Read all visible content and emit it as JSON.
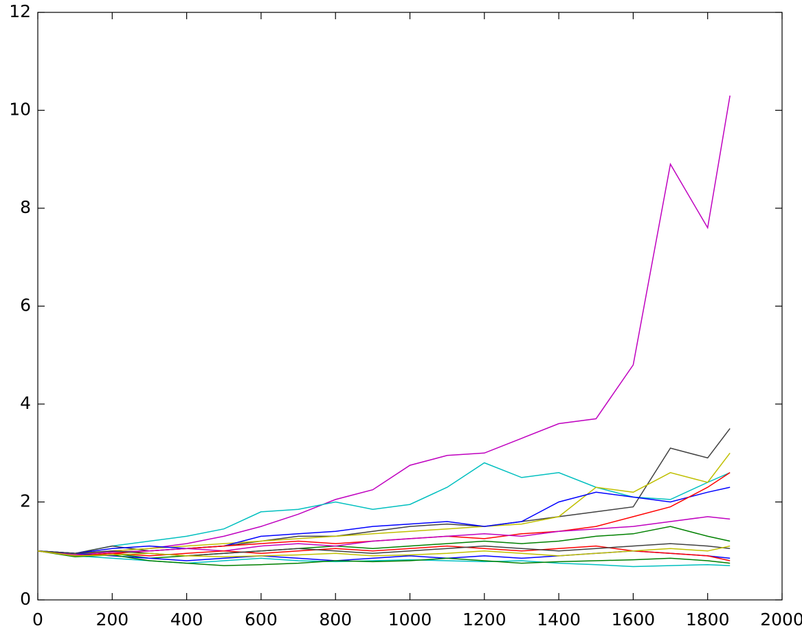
{
  "chart_data": {
    "type": "line",
    "x": [
      0,
      100,
      200,
      300,
      400,
      500,
      600,
      700,
      800,
      900,
      1000,
      1100,
      1200,
      1300,
      1400,
      1500,
      1600,
      1700,
      1800,
      1860
    ],
    "series": [
      {
        "color": "#bf00bf",
        "values": [
          1,
          0.92,
          1.0,
          1.05,
          1.15,
          1.3,
          1.5,
          1.75,
          2.05,
          2.25,
          2.75,
          2.95,
          3.0,
          3.3,
          3.6,
          3.7,
          4.8,
          8.9,
          7.6,
          10.3
        ]
      },
      {
        "color": "#00bfbf",
        "values": [
          1,
          0.95,
          1.1,
          1.2,
          1.3,
          1.45,
          1.8,
          1.85,
          2.0,
          1.85,
          1.95,
          2.3,
          2.8,
          2.5,
          2.6,
          2.3,
          2.1,
          2.05,
          2.4,
          2.6
        ]
      },
      {
        "color": "#404040",
        "values": [
          1,
          0.95,
          1.1,
          1.0,
          1.05,
          1.1,
          1.2,
          1.3,
          1.3,
          1.4,
          1.5,
          1.55,
          1.5,
          1.6,
          1.7,
          1.8,
          1.9,
          3.1,
          2.9,
          3.5
        ]
      },
      {
        "color": "#bfbf00",
        "values": [
          1,
          0.93,
          1.0,
          1.05,
          1.1,
          1.15,
          1.2,
          1.25,
          1.3,
          1.35,
          1.4,
          1.45,
          1.5,
          1.55,
          1.7,
          2.3,
          2.2,
          2.6,
          2.4,
          3.0
        ]
      },
      {
        "color": "#0000ff",
        "values": [
          1,
          0.95,
          1.05,
          1.1,
          1.05,
          1.1,
          1.3,
          1.35,
          1.4,
          1.5,
          1.55,
          1.6,
          1.5,
          1.6,
          2.0,
          2.2,
          2.1,
          2.0,
          2.2,
          2.3
        ]
      },
      {
        "color": "#ff0000",
        "values": [
          1,
          0.9,
          0.95,
          1.0,
          1.05,
          1.1,
          1.15,
          1.2,
          1.15,
          1.2,
          1.25,
          1.3,
          1.25,
          1.35,
          1.4,
          1.5,
          1.7,
          1.9,
          2.3,
          2.6
        ]
      },
      {
        "color": "#008000",
        "values": [
          1,
          0.9,
          0.95,
          0.85,
          0.9,
          0.95,
          1.0,
          1.05,
          1.1,
          1.05,
          1.1,
          1.15,
          1.2,
          1.15,
          1.2,
          1.3,
          1.35,
          1.5,
          1.3,
          1.2
        ]
      },
      {
        "color": "#bf00bf",
        "values": [
          1,
          0.92,
          0.98,
          1.0,
          1.05,
          1.0,
          1.1,
          1.15,
          1.1,
          1.2,
          1.25,
          1.3,
          1.35,
          1.3,
          1.4,
          1.45,
          1.5,
          1.6,
          1.7,
          1.65
        ]
      },
      {
        "color": "#0000ff",
        "values": [
          1,
          0.95,
          0.9,
          0.85,
          0.8,
          0.85,
          0.9,
          0.85,
          0.8,
          0.85,
          0.9,
          0.85,
          0.9,
          0.85,
          0.9,
          0.95,
          1.0,
          0.95,
          0.9,
          0.85
        ]
      },
      {
        "color": "#00bfbf",
        "values": [
          1,
          0.9,
          0.85,
          0.8,
          0.75,
          0.8,
          0.85,
          0.8,
          0.78,
          0.8,
          0.82,
          0.8,
          0.78,
          0.8,
          0.75,
          0.72,
          0.68,
          0.7,
          0.72,
          0.7
        ]
      },
      {
        "color": "#008000",
        "values": [
          1,
          0.88,
          0.92,
          0.8,
          0.75,
          0.7,
          0.72,
          0.75,
          0.8,
          0.78,
          0.8,
          0.85,
          0.8,
          0.75,
          0.78,
          0.8,
          0.82,
          0.85,
          0.8,
          0.75
        ]
      },
      {
        "color": "#ff0000",
        "values": [
          1,
          0.9,
          0.95,
          0.9,
          0.95,
          1.0,
          0.95,
          1.0,
          1.05,
          1.0,
          1.05,
          1.1,
          1.05,
          1.0,
          1.05,
          1.1,
          1.0,
          0.95,
          0.9,
          0.8
        ]
      },
      {
        "color": "#404040",
        "values": [
          1,
          0.95,
          1.0,
          0.95,
          0.9,
          0.95,
          1.0,
          1.05,
          1.0,
          0.95,
          1.0,
          1.05,
          1.1,
          1.05,
          1.0,
          1.05,
          1.1,
          1.15,
          1.1,
          1.05
        ]
      },
      {
        "color": "#bfbf00",
        "values": [
          1,
          0.9,
          0.92,
          0.95,
          0.9,
          0.88,
          0.9,
          0.92,
          0.95,
          0.9,
          0.92,
          0.95,
          1.0,
          0.95,
          0.9,
          0.95,
          1.0,
          1.05,
          1.0,
          1.1
        ]
      }
    ],
    "xlim": [
      0,
      2000
    ],
    "xticks": [
      0,
      200,
      400,
      600,
      800,
      1000,
      1200,
      1400,
      1600,
      1800,
      2000
    ],
    "ylim": [
      0,
      12
    ],
    "yticks": [
      0,
      2,
      4,
      6,
      8,
      10,
      12
    ]
  }
}
